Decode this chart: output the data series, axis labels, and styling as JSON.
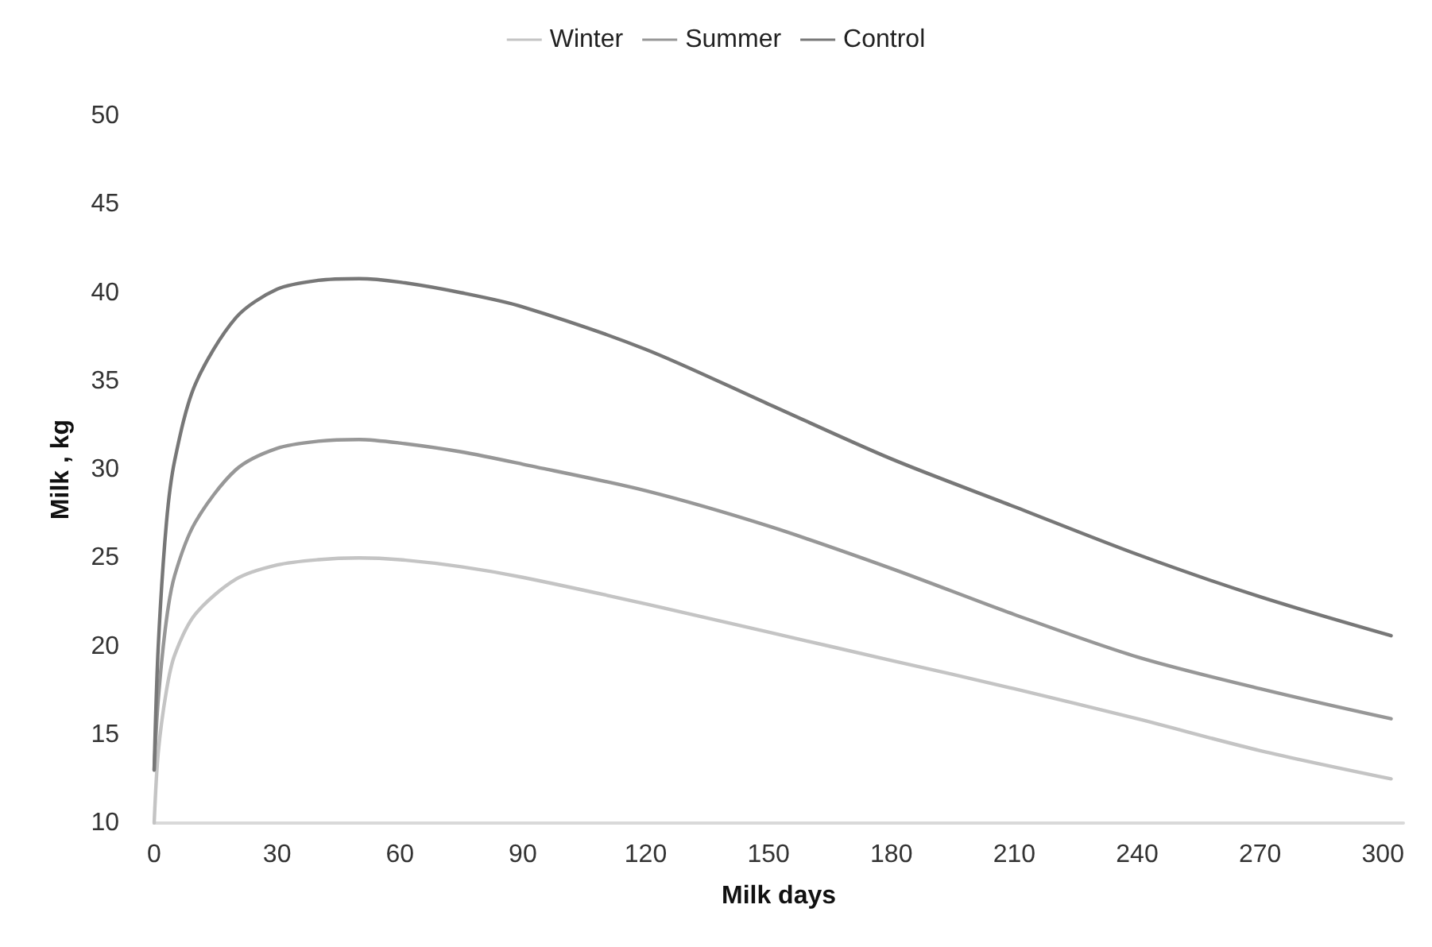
{
  "chart_data": {
    "type": "line",
    "xlabel": "Milk days",
    "ylabel": "Milk , kg",
    "xlim": [
      0,
      305
    ],
    "xticks": [
      0,
      30,
      60,
      90,
      120,
      150,
      180,
      210,
      240,
      270,
      300
    ],
    "ylim": [
      10,
      50
    ],
    "yticks": [
      10,
      15,
      20,
      25,
      30,
      35,
      40,
      45,
      50
    ],
    "grid": false,
    "legend": "top",
    "marker": "none",
    "line_style": "solid",
    "x": [
      0,
      1,
      3,
      5,
      10,
      20,
      30,
      40,
      50,
      60,
      75,
      90,
      120,
      150,
      180,
      210,
      240,
      270,
      302
    ],
    "series": [
      {
        "name": "Winter",
        "color": "#c4c4c4",
        "values": [
          10,
          14,
          17.5,
          19.5,
          21.8,
          23.8,
          24.6,
          24.9,
          25,
          24.9,
          24.5,
          23.9,
          22.4,
          20.8,
          19.2,
          17.6,
          15.9,
          14.1,
          12.5
        ]
      },
      {
        "name": "Summer",
        "color": "#979797",
        "values": [
          13,
          17,
          21.5,
          24,
          27,
          30,
          31.2,
          31.6,
          31.7,
          31.5,
          31,
          30.3,
          28.8,
          26.8,
          24.4,
          21.8,
          19.4,
          17.6,
          15.9
        ]
      },
      {
        "name": "Control",
        "color": "#777777",
        "values": [
          13,
          20,
          27,
          30.5,
          34.8,
          38.6,
          40.2,
          40.7,
          40.8,
          40.6,
          40,
          39.2,
          36.8,
          33.7,
          30.6,
          27.9,
          25.2,
          22.8,
          20.6
        ]
      }
    ]
  }
}
